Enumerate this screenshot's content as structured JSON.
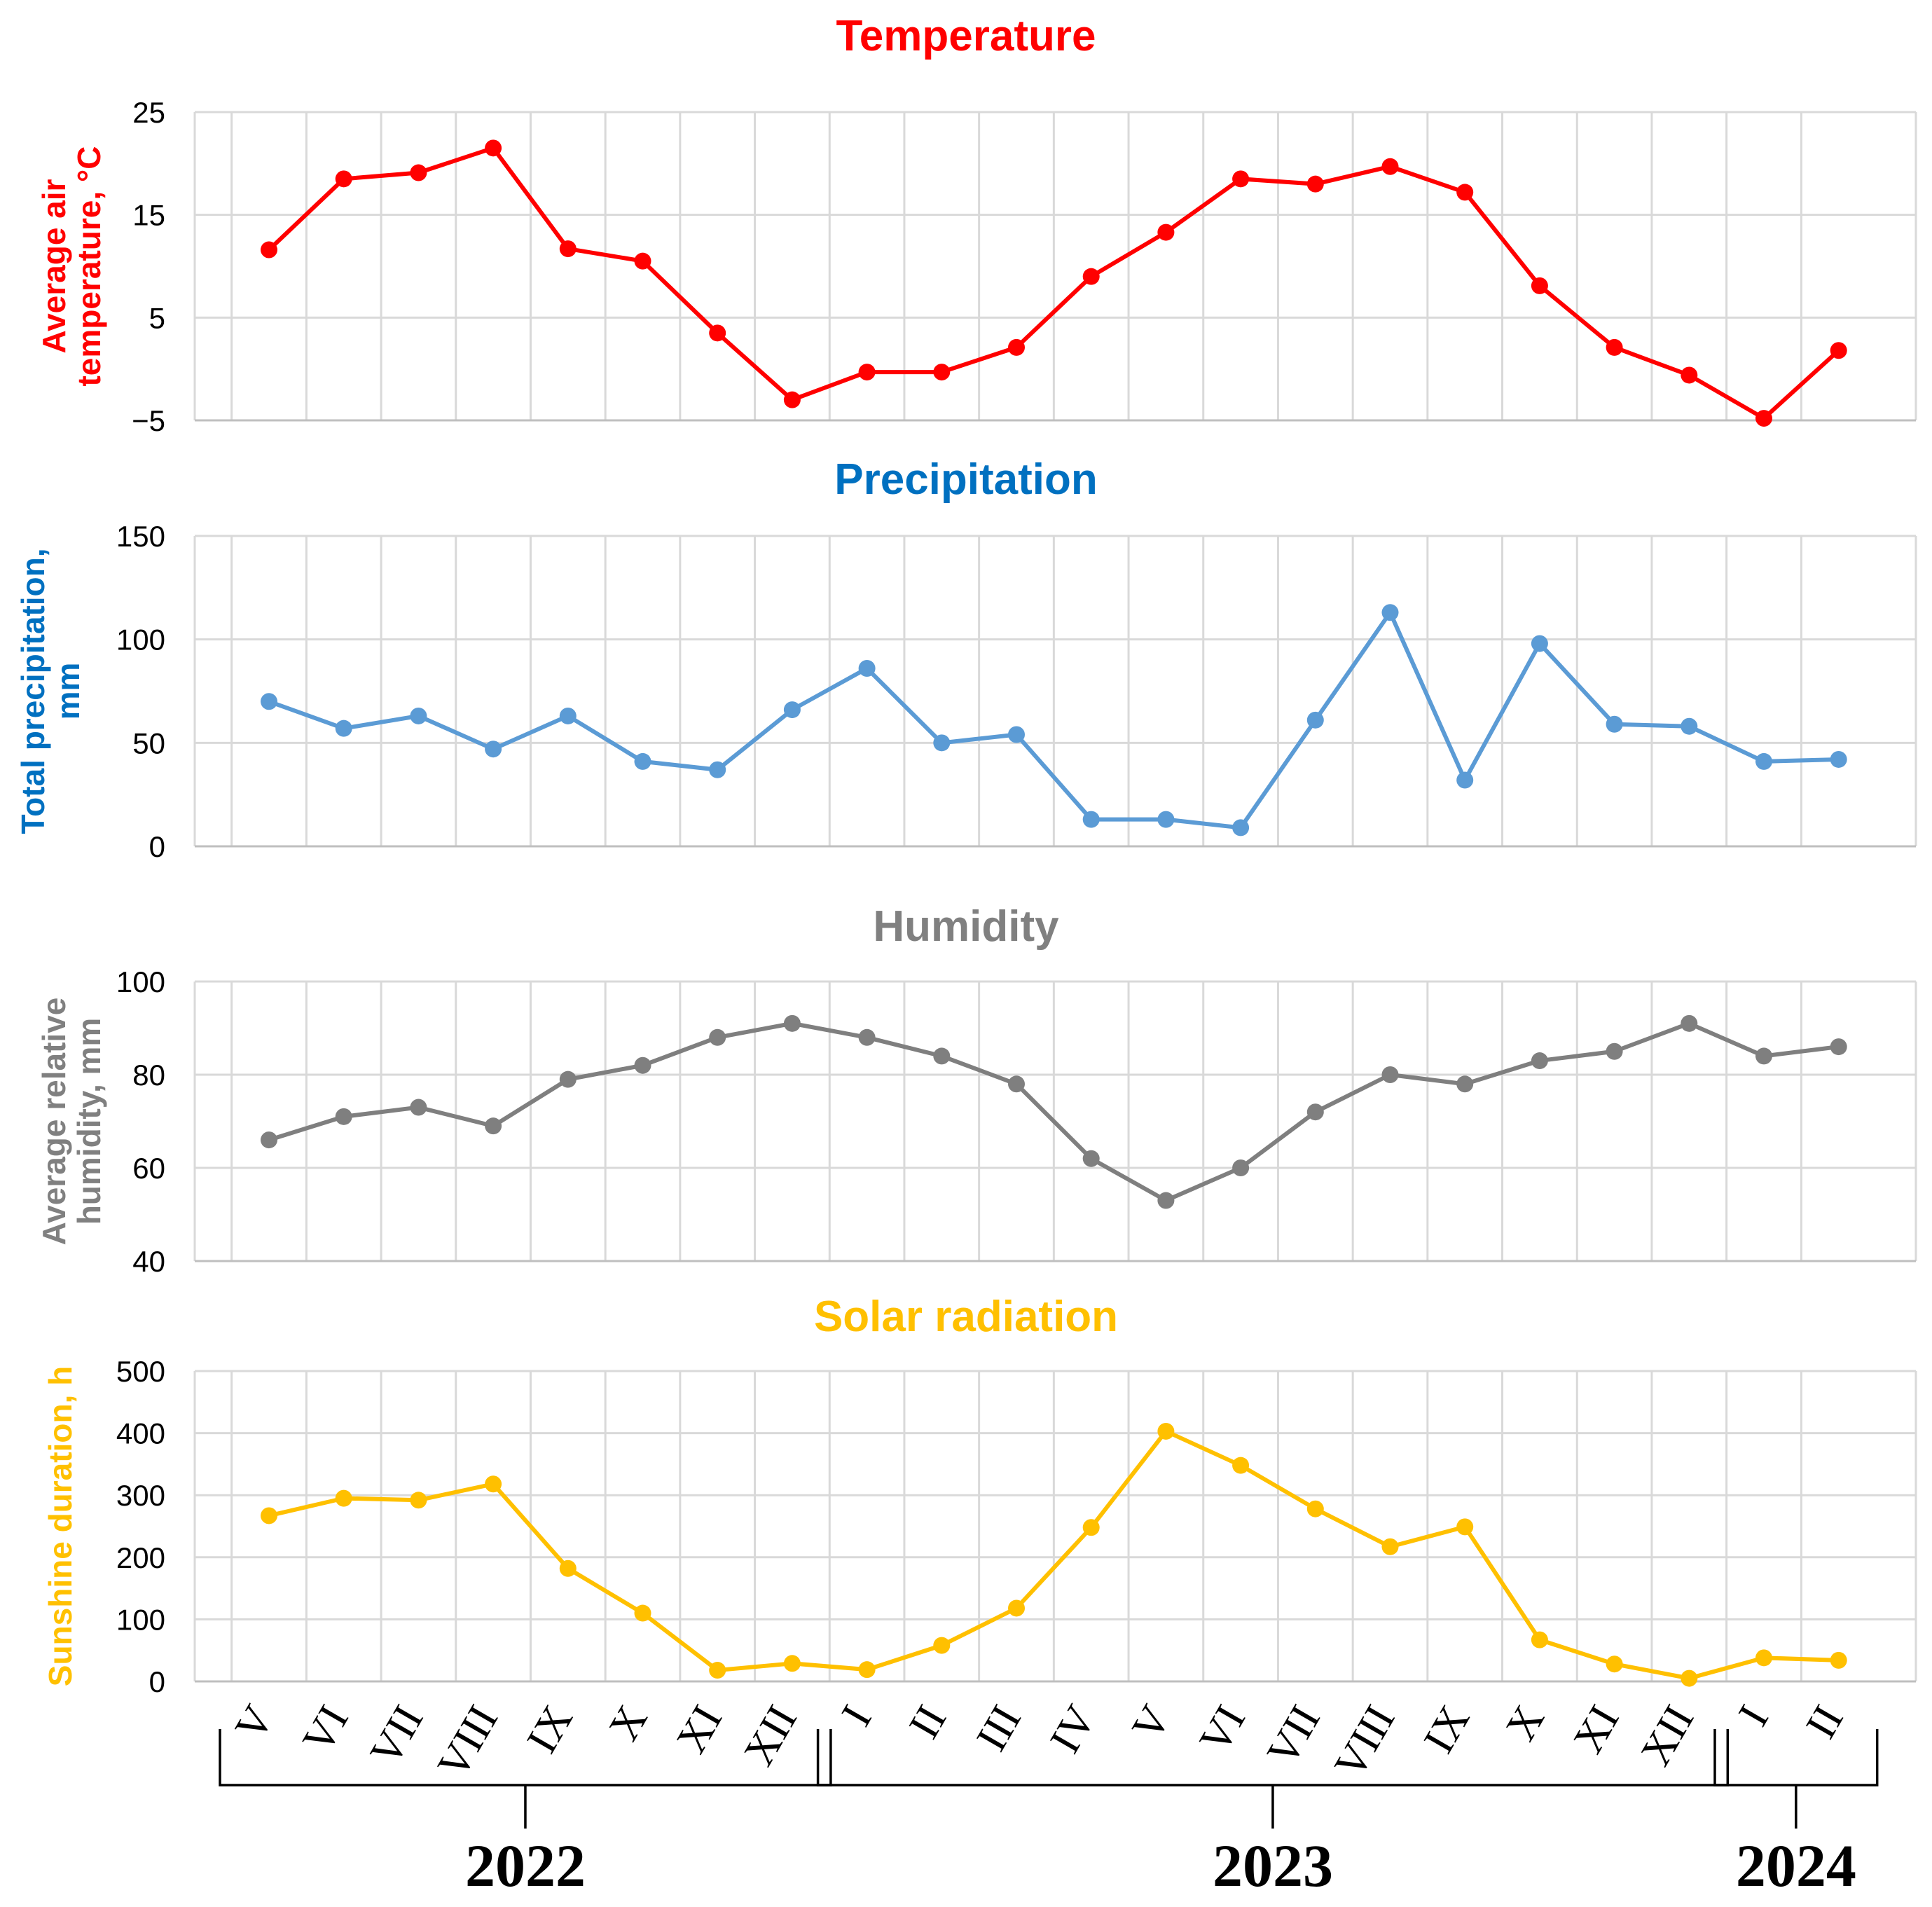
{
  "months": [
    "V",
    "VI",
    "VII",
    "VIII",
    "IX",
    "X",
    "XI",
    "XII",
    "I",
    "II",
    "III",
    "IV",
    "V",
    "VI",
    "VII",
    "VIII",
    "IX",
    "X",
    "XI",
    "XII",
    "I",
    "II"
  ],
  "years": [
    {
      "label": "2022",
      "first": 0,
      "last": 7
    },
    {
      "label": "2023",
      "first": 8,
      "last": 19
    },
    {
      "label": "2024",
      "first": 20,
      "last": 21
    }
  ],
  "chart_data": [
    {
      "type": "line",
      "title": "Temperature",
      "title_color": "#ff0000",
      "color": "#ff0000",
      "ylabel_lines": [
        "Average air",
        "temperature, °C"
      ],
      "ylim": [
        -5,
        25
      ],
      "yticks": [
        -5,
        5,
        15,
        25
      ],
      "ytick_labels": [
        "−5",
        "5",
        "15",
        "25"
      ],
      "values": [
        11.6,
        18.5,
        19.1,
        21.5,
        11.7,
        10.5,
        3.5,
        -3.0,
        -0.3,
        -0.3,
        2.1,
        9.0,
        13.3,
        18.5,
        18.0,
        19.7,
        17.2,
        8.1,
        2.1,
        -0.6,
        -4.8,
        1.8
      ]
    },
    {
      "type": "line",
      "title": "Precipitation",
      "title_color": "#0070c0",
      "color": "#5b9bd5",
      "ylabel_lines": [
        "Total precipitation,",
        "mm"
      ],
      "ylim": [
        0,
        150
      ],
      "yticks": [
        0,
        50,
        100,
        150
      ],
      "ytick_labels": [
        "0",
        "50",
        "100",
        "150"
      ],
      "values": [
        70,
        57,
        63,
        47,
        63,
        41,
        37,
        66,
        86,
        50,
        54,
        13,
        13,
        9,
        61,
        113,
        32,
        98,
        59,
        58,
        41,
        42
      ]
    },
    {
      "type": "line",
      "title": "Humidity",
      "title_color": "#808080",
      "color": "#7f7f7f",
      "ylabel_lines": [
        "Average relative",
        "humidity, mm"
      ],
      "ylim": [
        40,
        100
      ],
      "yticks": [
        40,
        60,
        80,
        100
      ],
      "ytick_labels": [
        "40",
        "60",
        "80",
        "100"
      ],
      "values": [
        66,
        71,
        73,
        69,
        79,
        82,
        88,
        91,
        88,
        84,
        78,
        62,
        53,
        60,
        72,
        80,
        78,
        83,
        85,
        91,
        84,
        86
      ]
    },
    {
      "type": "line",
      "title": "Solar radiation",
      "title_color": "#ffc000",
      "color": "#ffc000",
      "ylabel_lines": [
        "Sunshine duration, h"
      ],
      "ylim": [
        0,
        500
      ],
      "yticks": [
        0,
        100,
        200,
        300,
        400,
        500
      ],
      "ytick_labels": [
        "0",
        "100",
        "200",
        "300",
        "400",
        "500"
      ],
      "values": [
        267,
        295,
        292,
        318,
        182,
        110,
        18,
        29,
        19,
        58,
        118,
        248,
        403,
        348,
        278,
        217,
        249,
        67,
        28,
        5,
        38,
        34
      ]
    }
  ]
}
